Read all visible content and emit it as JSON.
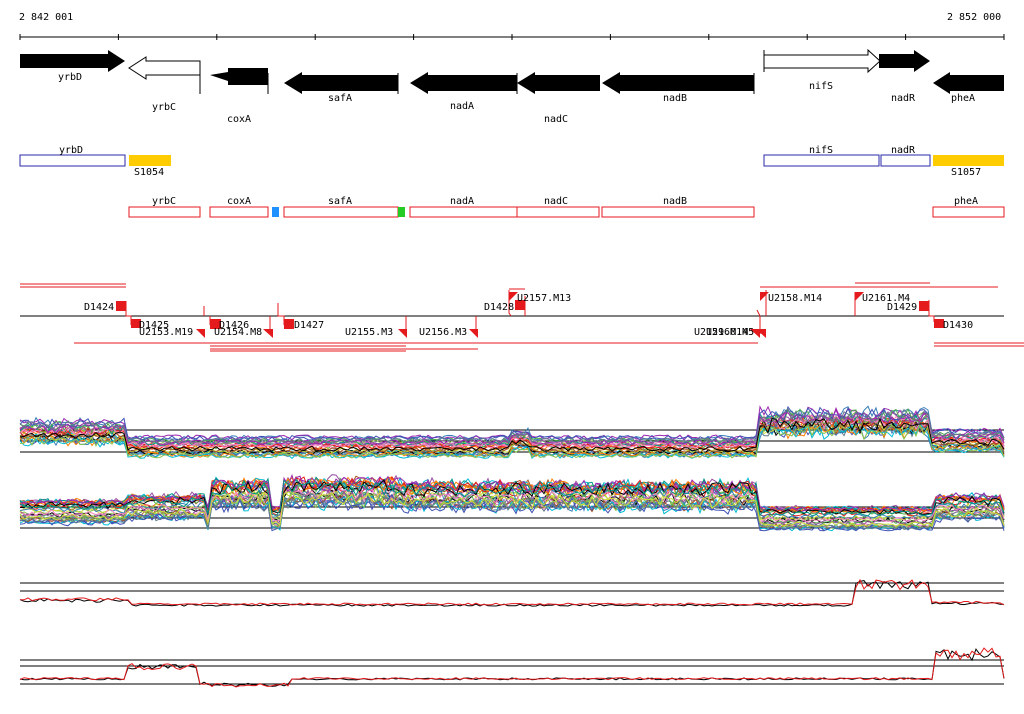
{
  "coords": {
    "start": "2 842 001",
    "end": "2 852 000"
  },
  "genes": [
    {
      "name": "yrbD",
      "dir": "right",
      "filled": true
    },
    {
      "name": "yrbC",
      "dir": "left",
      "filled": false
    },
    {
      "name": "coxA",
      "dir": "left",
      "filled": true
    },
    {
      "name": "safA",
      "dir": "left",
      "filled": true
    },
    {
      "name": "nadA",
      "dir": "left",
      "filled": true
    },
    {
      "name": "nadC",
      "dir": "left",
      "filled": true
    },
    {
      "name": "nadB",
      "dir": "left",
      "filled": true
    },
    {
      "name": "nifS",
      "dir": "right",
      "filled": false
    },
    {
      "name": "nadR",
      "dir": "right",
      "filled": true
    },
    {
      "name": "pheA",
      "dir": "left",
      "filled": true
    }
  ],
  "blue_boxes": [
    "yrbD",
    "nifS",
    "nadR"
  ],
  "yellow_boxes": [
    "S1054",
    "S1057"
  ],
  "red_boxes": [
    "yrbC",
    "coxA",
    "safA",
    "nadA",
    "nadC",
    "nadB",
    "pheA"
  ],
  "features": [
    "D1424",
    "D1425",
    "U2153.M19",
    "D1426",
    "U2154.M8",
    "D1427",
    "U2155.M3",
    "U2156.M3",
    "D1428",
    "U2157.M13",
    "U2159.M14",
    "U2160.M5",
    "U2158.M14",
    "U2161.M4",
    "D1429",
    "D1430"
  ],
  "colors": {
    "gene": "#000000",
    "blue": "#2a2aa8",
    "yellow": "#ffcc00",
    "red": "#e41a1c",
    "cyan": "#1e90ff",
    "green": "#22cc22"
  }
}
